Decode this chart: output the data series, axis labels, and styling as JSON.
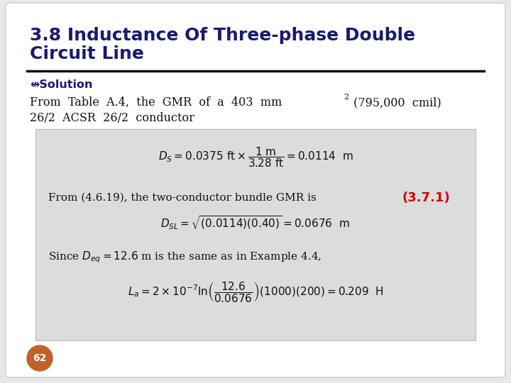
{
  "bg_color": "#e8e8e8",
  "slide_bg": "#ffffff",
  "title_line1": "3.8 Inductance Of Three-phase Double",
  "title_line2": "Circuit Line",
  "title_color": "#1a1a6e",
  "title_fontsize": 18,
  "solution_symbol": "↮Solution",
  "solution_color": "#1a1a6e",
  "solution_fontsize": 11.5,
  "body_fontsize": 11.5,
  "body_color": "#111111",
  "box_bg": "#dcdcdc",
  "box_edge": "#bbbbbb",
  "eq2_ref_color": "#cc0000",
  "badge_color": "#c0612b",
  "badge_text": "62",
  "badge_fontsize": 10,
  "line_color": "#111111"
}
